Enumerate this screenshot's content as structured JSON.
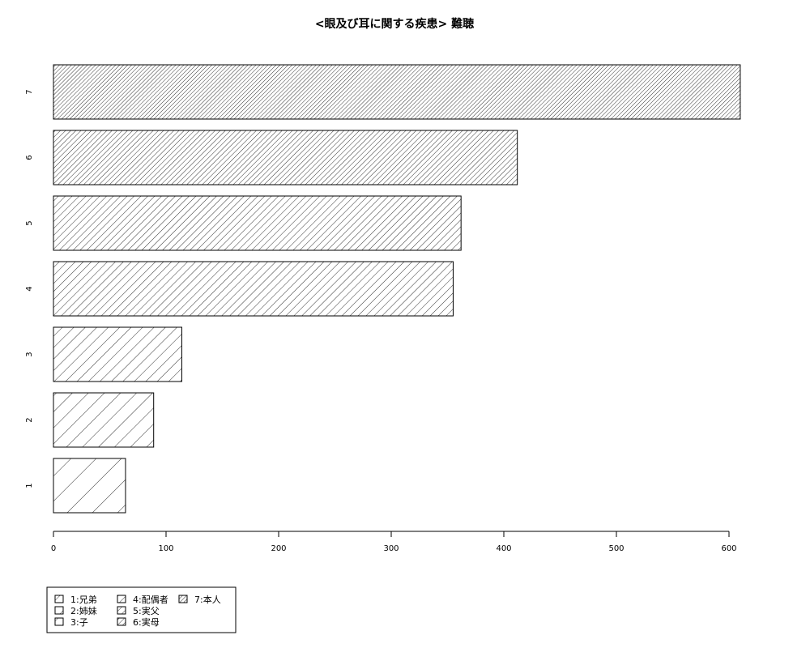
{
  "chart_data": {
    "type": "bar",
    "orientation": "horizontal",
    "title": "<眼及び耳に関する疾患> 難聴",
    "xlabel": "",
    "ylabel": "",
    "categories": [
      "1",
      "2",
      "3",
      "4",
      "5",
      "6",
      "7"
    ],
    "values": [
      64,
      89,
      114,
      355,
      362,
      412,
      610
    ],
    "xlim": [
      0,
      610
    ],
    "x_ticks": [
      0,
      100,
      200,
      300,
      400,
      500,
      600
    ],
    "grid": false,
    "legend_position": "bottom-left",
    "legend": [
      "1:兄弟",
      "2:姉妹",
      "3:子",
      "4:配偶者",
      "5:実父",
      "6:実母",
      "7:本人"
    ],
    "fill": "hatched"
  }
}
